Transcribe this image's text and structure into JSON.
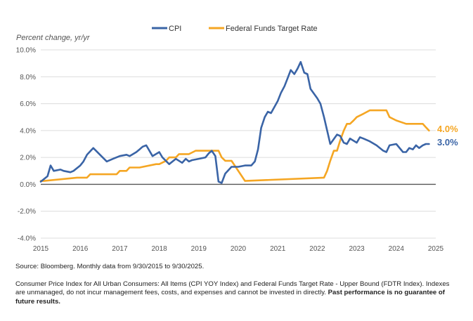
{
  "chart_data": {
    "type": "line",
    "ylabel": "Percent change, yr/yr",
    "ylim": [
      -4,
      10
    ],
    "yticks": [
      -4,
      -2,
      0,
      2,
      4,
      6,
      8,
      10
    ],
    "ytick_labels": [
      "-4.0%",
      "-2.0%",
      "0.0%",
      "2.0%",
      "4.0%",
      "6.0%",
      "8.0%",
      "10.0%"
    ],
    "xlim": [
      2015,
      2025
    ],
    "xticks": [
      "2015",
      "2016",
      "2017",
      "2018",
      "2019",
      "2020",
      "2021",
      "2022",
      "2023",
      "2024",
      "2025"
    ],
    "grid": "horizontal",
    "legend": "top-center",
    "series": [
      {
        "name": "CPI",
        "color": "#3a64a6",
        "end_label": "3.0%",
        "x": [
          2015.0,
          2015.17,
          2015.25,
          2015.33,
          2015.5,
          2015.58,
          2015.75,
          2015.83,
          2016.0,
          2016.08,
          2016.17,
          2016.33,
          2016.5,
          2016.67,
          2016.83,
          2017.0,
          2017.17,
          2017.25,
          2017.42,
          2017.5,
          2017.58,
          2017.67,
          2017.83,
          2018.0,
          2018.08,
          2018.25,
          2018.42,
          2018.58,
          2018.67,
          2018.75,
          2018.83,
          2019.0,
          2019.17,
          2019.25,
          2019.33,
          2019.42,
          2019.5,
          2019.58,
          2019.67,
          2019.83,
          2020.0,
          2020.17,
          2020.33,
          2020.42,
          2020.5,
          2020.58,
          2020.67,
          2020.75,
          2020.83,
          2021.0,
          2021.08,
          2021.17,
          2021.25,
          2021.33,
          2021.42,
          2021.5,
          2021.58,
          2021.67,
          2021.75,
          2021.83,
          2022.0,
          2022.08,
          2022.17,
          2022.33,
          2022.5,
          2022.58,
          2022.67,
          2022.75,
          2022.83,
          2023.0,
          2023.08,
          2023.17,
          2023.33,
          2023.5,
          2023.67,
          2023.75,
          2023.83,
          2024.0,
          2024.17,
          2024.25,
          2024.33,
          2024.42,
          2024.5,
          2024.58,
          2024.67,
          2024.75,
          2024.83
        ],
        "values": [
          0.2,
          0.6,
          1.4,
          1.0,
          1.1,
          1.0,
          0.9,
          1.0,
          1.4,
          1.7,
          2.2,
          2.7,
          2.2,
          1.7,
          1.9,
          2.1,
          2.2,
          2.1,
          2.4,
          2.6,
          2.8,
          2.9,
          2.1,
          2.4,
          2.0,
          1.5,
          1.9,
          1.6,
          1.9,
          1.7,
          1.8,
          1.9,
          2.0,
          2.3,
          2.5,
          2.1,
          0.2,
          0.1,
          0.8,
          1.3,
          1.3,
          1.4,
          1.4,
          1.7,
          2.6,
          4.2,
          5.0,
          5.4,
          5.3,
          6.2,
          6.8,
          7.3,
          7.9,
          8.5,
          8.2,
          8.6,
          9.1,
          8.3,
          8.2,
          7.1,
          6.4,
          6.0,
          5.0,
          3.0,
          3.7,
          3.6,
          3.1,
          3.0,
          3.4,
          3.1,
          3.5,
          3.4,
          3.2,
          2.9,
          2.5,
          2.4,
          2.9,
          3.0,
          2.4,
          2.4,
          2.7,
          2.6,
          2.9,
          2.7,
          2.9,
          3.0,
          3.0
        ]
      },
      {
        "name": "Federal Funds Target Rate",
        "color": "#f5a623",
        "end_label": "4.0%",
        "x": [
          2015.0,
          2015.08,
          2015.92,
          2016.0,
          2016.17,
          2016.25,
          2016.92,
          2017.0,
          2017.17,
          2017.25,
          2017.42,
          2017.5,
          2017.92,
          2018.0,
          2018.17,
          2018.25,
          2018.42,
          2018.5,
          2018.67,
          2018.75,
          2018.92,
          2019.0,
          2019.17,
          2019.5,
          2019.58,
          2019.67,
          2019.75,
          2019.83,
          2020.17,
          2022.17,
          2022.25,
          2022.33,
          2022.42,
          2022.5,
          2022.58,
          2022.67,
          2022.75,
          2022.83,
          2022.92,
          2023.0,
          2023.17,
          2023.33,
          2023.5,
          2023.58,
          2023.67,
          2023.75,
          2023.83,
          2024.0,
          2024.25,
          2024.5,
          2024.67,
          2024.75,
          2024.83
        ],
        "values": [
          0.25,
          0.25,
          0.5,
          0.5,
          0.5,
          0.75,
          0.75,
          1.0,
          1.0,
          1.25,
          1.25,
          1.25,
          1.5,
          1.5,
          1.75,
          2.0,
          2.0,
          2.25,
          2.25,
          2.25,
          2.5,
          2.5,
          2.5,
          2.5,
          2.0,
          1.75,
          1.75,
          1.75,
          0.25,
          0.5,
          1.0,
          1.75,
          2.5,
          2.5,
          3.25,
          4.0,
          4.5,
          4.5,
          4.75,
          5.0,
          5.25,
          5.5,
          5.5,
          5.5,
          5.5,
          5.5,
          5.0,
          4.75,
          4.5,
          4.5,
          4.5,
          4.25,
          4.0
        ]
      }
    ]
  },
  "notes": {
    "source": "Source: Bloomberg. Monthly data from 9/30/2015 to 9/30/2025.",
    "disclosure": "Consumer Price Index for All Urban Consumers: All Items (CPI YOY Index) and Federal Funds Target Rate - Upper Bound (FDTR Index).  Indexes are unmanaged, do not incur management fees, costs, and expenses and cannot be invested in directly. ",
    "disclosure_bold": "Past performance is no guarantee of future results."
  }
}
